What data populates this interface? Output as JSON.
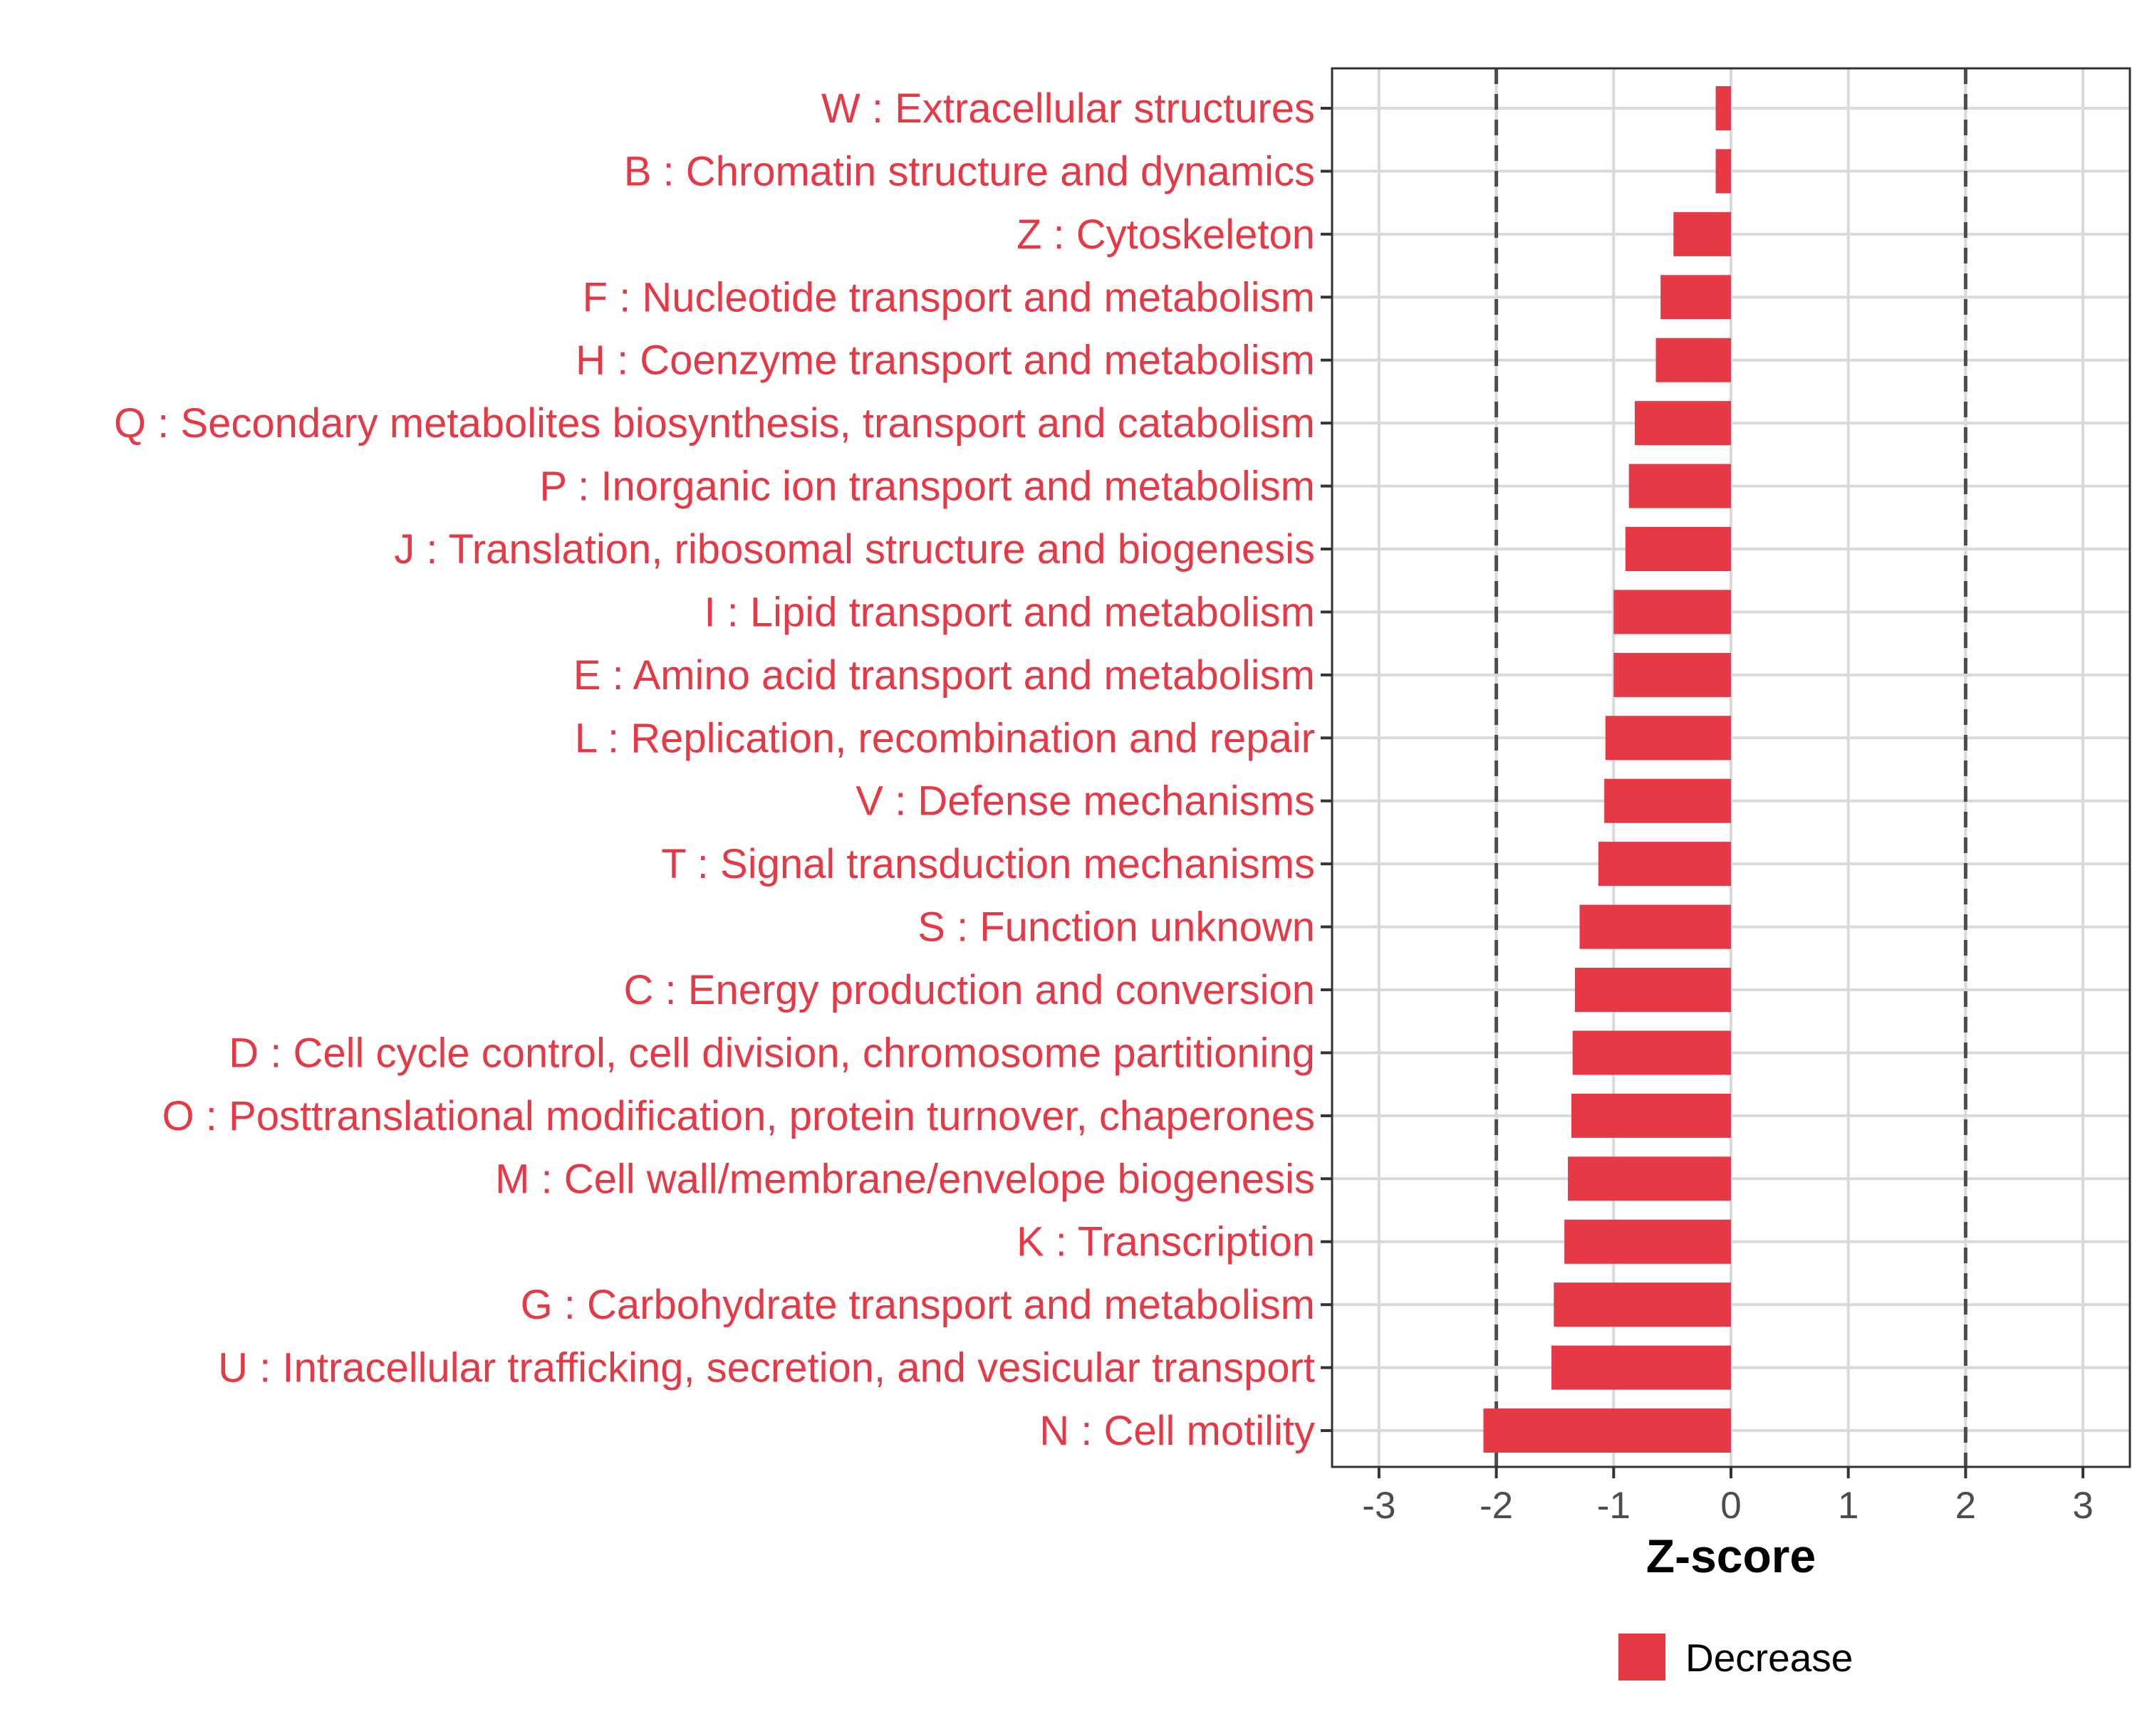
{
  "chart_data": {
    "type": "bar",
    "orientation": "horizontal",
    "categories": [
      "W : Extracellular structures",
      "B : Chromatin structure and dynamics",
      "Z : Cytoskeleton",
      "F : Nucleotide transport and metabolism",
      "H : Coenzyme transport and metabolism",
      "Q : Secondary metabolites biosynthesis, transport and catabolism",
      "P : Inorganic ion transport and metabolism",
      "J : Translation, ribosomal structure and biogenesis",
      "I : Lipid transport and metabolism",
      "E : Amino acid transport and metabolism",
      "L : Replication, recombination and repair",
      "V : Defense mechanisms",
      "T : Signal transduction mechanisms",
      "S : Function unknown",
      "C : Energy production and conversion",
      "D : Cell cycle control, cell division, chromosome partitioning",
      "O : Posttranslational modification, protein turnover, chaperones",
      "M : Cell wall/membrane/envelope biogenesis",
      "K : Transcription",
      "G : Carbohydrate transport and metabolism",
      "U : Intracellular trafficking, secretion, and vesicular transport",
      "N : Cell motility"
    ],
    "values": [
      -0.13,
      -0.13,
      -0.49,
      -0.6,
      -0.64,
      -0.82,
      -0.87,
      -0.9,
      -1.0,
      -1.0,
      -1.07,
      -1.08,
      -1.13,
      -1.29,
      -1.33,
      -1.35,
      -1.36,
      -1.39,
      -1.42,
      -1.51,
      -1.53,
      -2.11
    ],
    "xlabel": "Z-score",
    "xlim": [
      -3.4,
      3.4
    ],
    "xticks": [
      -3,
      -2,
      -1,
      0,
      1,
      2,
      3
    ],
    "xtick_labels": [
      "-3",
      "-2",
      "-1",
      "0",
      "1",
      "2",
      "3"
    ],
    "reference_lines": [
      -2,
      2
    ],
    "grid": true,
    "legend": {
      "position": "bottom",
      "entries": [
        {
          "label": "Decrease",
          "color": "#e63946"
        }
      ]
    }
  },
  "colors": {
    "bar": "#e63946",
    "label": "#e63946",
    "grid": "#d9d9d9",
    "axis": "#333333",
    "tick_text": "#4d4d4d",
    "ref_line": "#4d4d4d"
  }
}
